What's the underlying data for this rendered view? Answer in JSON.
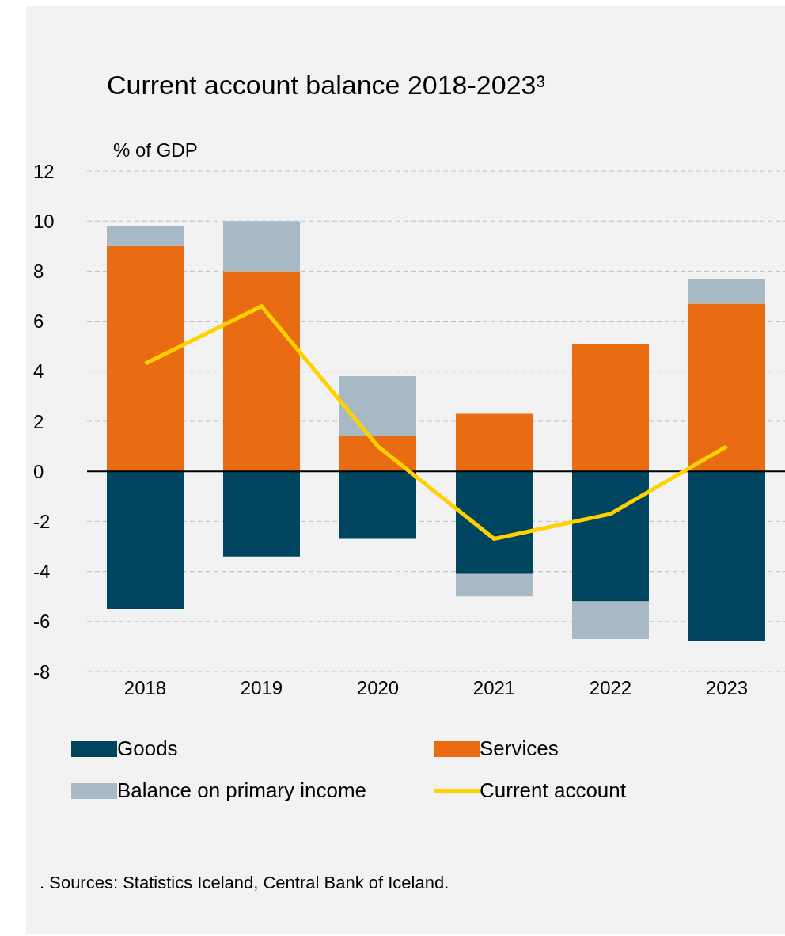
{
  "chart_data": {
    "type": "bar",
    "title": "Current account balance 2018-2023³",
    "ylabel": "% of GDP",
    "categories": [
      "2018",
      "2019",
      "2020",
      "2021",
      "2022",
      "2023"
    ],
    "stacked": true,
    "series": [
      {
        "name": "Goods",
        "color": "#004560",
        "values": [
          -5.5,
          -3.4,
          -2.7,
          -4.1,
          -5.2,
          -6.8
        ]
      },
      {
        "name": "Services",
        "color": "#e96b12",
        "values": [
          9.0,
          8.0,
          1.4,
          2.3,
          5.1,
          6.7
        ]
      },
      {
        "name": "Balance on primary income",
        "color": "#a6b9c4",
        "values": [
          0.8,
          2.0,
          2.4,
          -0.9,
          -1.5,
          1.0
        ]
      },
      {
        "name": "Current account",
        "type": "line",
        "color": "#ffd100",
        "values": [
          4.3,
          6.6,
          1.0,
          -2.7,
          -1.7,
          1.0
        ]
      }
    ],
    "ylim": [
      -8,
      12
    ],
    "yticks": [
      -8,
      -6,
      -4,
      -2,
      0,
      2,
      4,
      6,
      8,
      10,
      12
    ],
    "grid": "y",
    "legend": "bottom",
    "marker": "none",
    "annotations": [
      ". Sources: Statistics Iceland, Central Bank of Iceland."
    ]
  }
}
